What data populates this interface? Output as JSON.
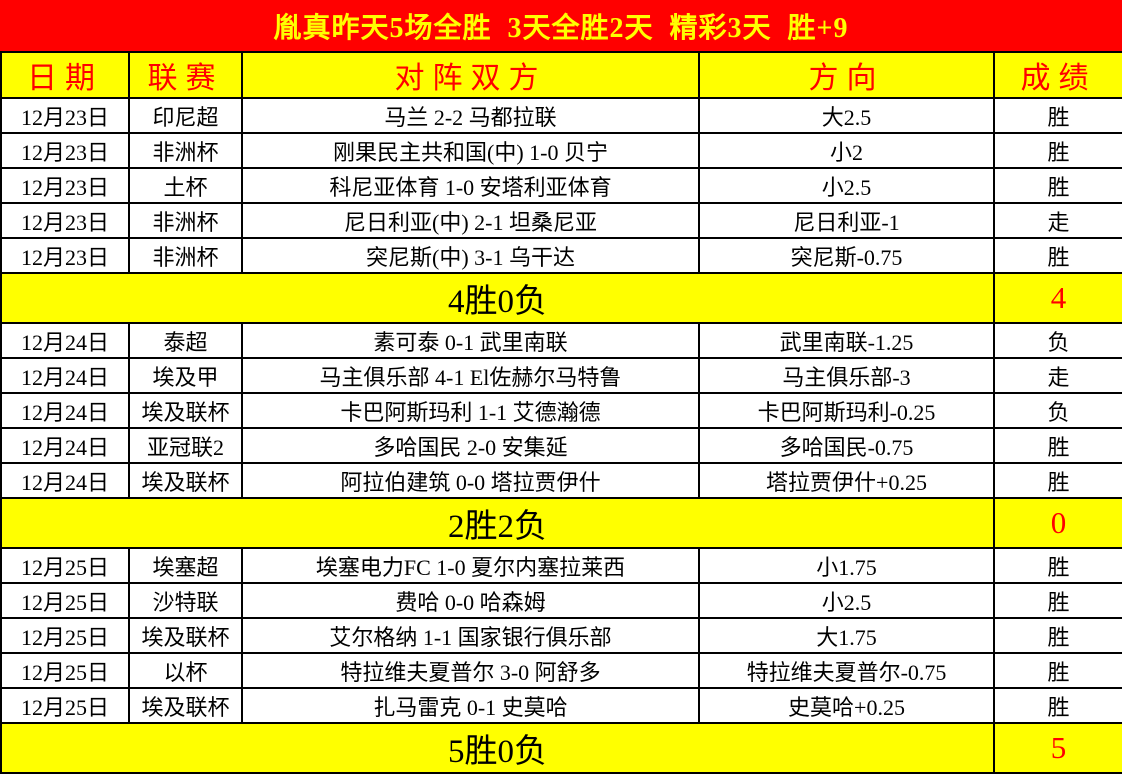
{
  "banner": {
    "text": "胤真昨天5场全胜  3天全胜2天  精彩3天  胜+9"
  },
  "colors": {
    "banner_bg": "#FF0000",
    "banner_text": "#FFFF00",
    "header_bg": "#FFFF00",
    "header_text": "#FF0000",
    "win_cell_bg": "#FF0000",
    "win_cell_text": "#FFFF00",
    "loss_cell_text": "#000000",
    "summary_bg": "#FFFF00",
    "summary_score_text": "#FF0000"
  },
  "table": {
    "headers": [
      "日期",
      "联赛",
      "对阵双方",
      "方向",
      "成绩"
    ],
    "groups": [
      {
        "rows": [
          {
            "date": "12月23日",
            "league": "印尼超",
            "match": "马兰 2-2 马都拉联",
            "direction": "大2.5",
            "result": "胜",
            "result_type": "win"
          },
          {
            "date": "12月23日",
            "league": "非洲杯",
            "match": "刚果民主共和国(中) 1-0 贝宁",
            "direction": "小2",
            "result": "胜",
            "result_type": "win"
          },
          {
            "date": "12月23日",
            "league": "土杯",
            "match": "科尼亚体育 1-0 安塔利亚体育",
            "direction": "小2.5",
            "result": "胜",
            "result_type": "win"
          },
          {
            "date": "12月23日",
            "league": "非洲杯",
            "match": "尼日利亚(中) 2-1 坦桑尼亚",
            "direction": "尼日利亚-1",
            "result": "走",
            "result_type": "push"
          },
          {
            "date": "12月23日",
            "league": "非洲杯",
            "match": "突尼斯(中) 3-1 乌干达",
            "direction": "突尼斯-0.75",
            "result": "胜",
            "result_type": "win"
          }
        ],
        "summary": {
          "label": "4胜0负",
          "score": "4"
        }
      },
      {
        "rows": [
          {
            "date": "12月24日",
            "league": "泰超",
            "match": "素可泰 0-1 武里南联",
            "direction": "武里南联-1.25",
            "result": "负",
            "result_type": "loss"
          },
          {
            "date": "12月24日",
            "league": "埃及甲",
            "match": "马主俱乐部 4-1 El佐赫尔马特鲁",
            "direction": "马主俱乐部-3",
            "result": "走",
            "result_type": "push"
          },
          {
            "date": "12月24日",
            "league": "埃及联杯",
            "match": "卡巴阿斯玛利 1-1 艾德瀚德",
            "direction": "卡巴阿斯玛利-0.25",
            "result": "负",
            "result_type": "loss"
          },
          {
            "date": "12月24日",
            "league": "亚冠联2",
            "match": "多哈国民 2-0 安集延",
            "direction": "多哈国民-0.75",
            "result": "胜",
            "result_type": "win"
          },
          {
            "date": "12月24日",
            "league": "埃及联杯",
            "match": "阿拉伯建筑 0-0 塔拉贾伊什",
            "direction": "塔拉贾伊什+0.25",
            "result": "胜",
            "result_type": "win"
          }
        ],
        "summary": {
          "label": "2胜2负",
          "score": "0"
        }
      },
      {
        "rows": [
          {
            "date": "12月25日",
            "league": "埃塞超",
            "match": "埃塞电力FC 1-0 夏尔内塞拉莱西",
            "direction": "小1.75",
            "result": "胜",
            "result_type": "win"
          },
          {
            "date": "12月25日",
            "league": "沙特联",
            "match": "费哈 0-0 哈森姆",
            "direction": "小2.5",
            "result": "胜",
            "result_type": "win"
          },
          {
            "date": "12月25日",
            "league": "埃及联杯",
            "match": "艾尔格纳 1-1 国家银行俱乐部",
            "direction": "大1.75",
            "result": "胜",
            "result_type": "win"
          },
          {
            "date": "12月25日",
            "league": "以杯",
            "match": "特拉维夫夏普尔 3-0 阿舒多",
            "direction": "特拉维夫夏普尔-0.75",
            "result": "胜",
            "result_type": "win"
          },
          {
            "date": "12月25日",
            "league": "埃及联杯",
            "match": "扎马雷克 0-1 史莫哈",
            "direction": "史莫哈+0.25",
            "result": "胜",
            "result_type": "win"
          }
        ],
        "summary": {
          "label": "5胜0负",
          "score": "5"
        }
      }
    ]
  }
}
